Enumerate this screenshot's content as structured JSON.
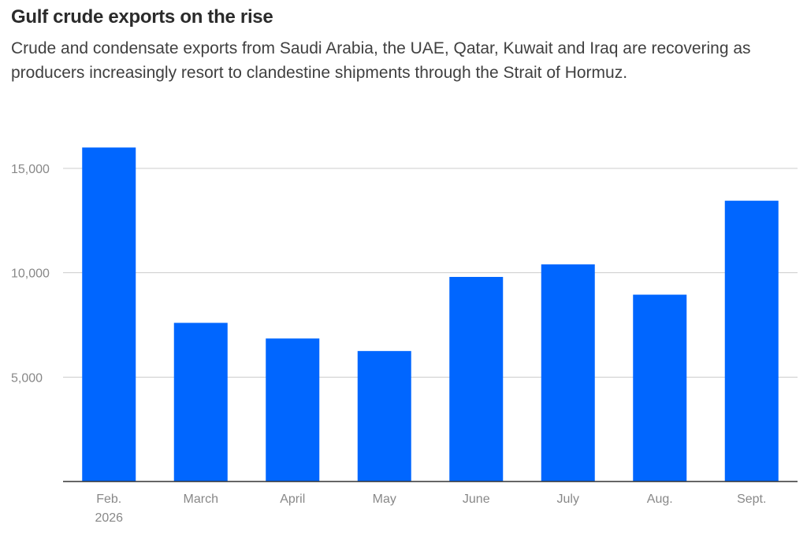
{
  "title": "Gulf crude exports on the rise",
  "subtitle": "Crude and condensate exports from Saudi Arabia, the UAE, Qatar, Kuwait and Iraq are recovering as producers increasingly resort to clandestine shipments through the Strait of Hormuz.",
  "chart_data": {
    "type": "bar",
    "categories": [
      [
        "Feb.",
        "2026"
      ],
      [
        "March"
      ],
      [
        "April"
      ],
      [
        "May"
      ],
      [
        "June"
      ],
      [
        "July"
      ],
      [
        "Aug."
      ],
      [
        "Sept."
      ]
    ],
    "values": [
      16000,
      7600,
      6850,
      6250,
      9800,
      10400,
      8950,
      13450
    ],
    "yticks": [
      5000,
      10000,
      15000
    ],
    "ytick_labels": [
      "5,000",
      "10,000",
      "15,000"
    ],
    "ylim": [
      0,
      17000
    ],
    "grid": true,
    "bar_color": "#0066ff",
    "grid_color": "#cccccc",
    "axis_color": "#333333"
  }
}
